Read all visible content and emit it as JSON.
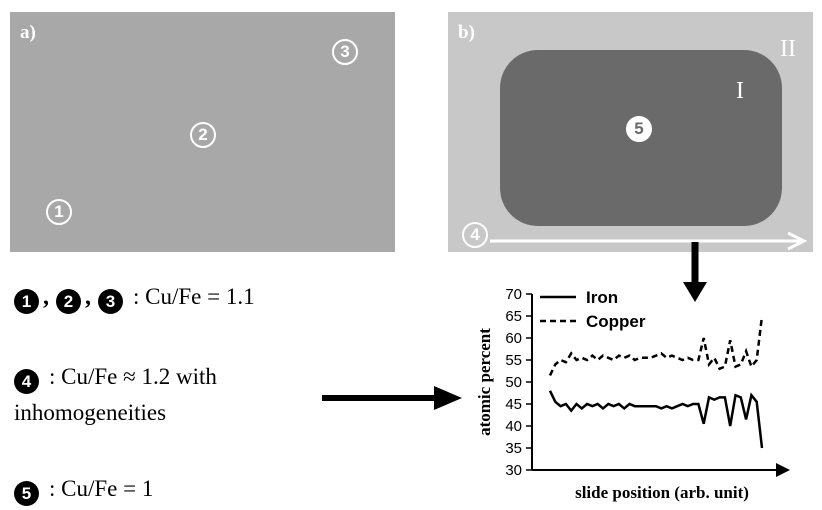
{
  "panel_a": {
    "label": "a)",
    "markers": [
      "1",
      "2",
      "3"
    ]
  },
  "panel_b": {
    "label": "b)",
    "region_inner": "I",
    "region_outer": "II",
    "marker_center": "5",
    "marker_line": "4"
  },
  "notes": {
    "line1_markers": [
      "1",
      "2",
      "3"
    ],
    "line1_text": ": Cu/Fe = 1.1",
    "line2_marker": "4",
    "line2_text": ": Cu/Fe ≈ 1.2 with",
    "line2_text_b": "inhomogeneities",
    "line3_marker": "5",
    "line3_text": ": Cu/Fe = 1"
  },
  "colors": {
    "panel_a": "#a8a8a8",
    "panel_b": "#c8c8c8",
    "region_I": "#6a6a6a"
  },
  "chart_data": {
    "type": "line",
    "ylabel": "atomic percent",
    "xlabel": "slide position (arb. unit)",
    "ylim": [
      30,
      70
    ],
    "yticks": [
      30,
      35,
      40,
      45,
      50,
      55,
      60,
      65,
      70
    ],
    "legend": "top-left",
    "x_unlabeled": true,
    "series": [
      {
        "name": "Iron",
        "style": "solid",
        "x": [
          0,
          1,
          2,
          3,
          4,
          5,
          6,
          7,
          8,
          9,
          10,
          11,
          12,
          13,
          14,
          15,
          16,
          17,
          18,
          19,
          20,
          21,
          22,
          23,
          24,
          25,
          26,
          27,
          28,
          29,
          30,
          31,
          32,
          33,
          34,
          35,
          36,
          37,
          38,
          39,
          40
        ],
        "values": [
          48,
          45.5,
          44.5,
          45,
          43.5,
          45,
          44,
          45,
          44.5,
          45,
          44,
          45,
          44.5,
          45,
          44,
          45,
          44.5,
          44.5,
          44.5,
          44.5,
          44.5,
          44,
          44.5,
          44,
          44.5,
          45,
          44.5,
          45,
          45,
          40.5,
          46.5,
          46,
          46.5,
          46.5,
          40,
          47,
          46.5,
          41.5,
          47,
          45.5,
          35
        ]
      },
      {
        "name": "Copper",
        "style": "dashed",
        "x": [
          0,
          1,
          2,
          3,
          4,
          5,
          6,
          7,
          8,
          9,
          10,
          11,
          12,
          13,
          14,
          15,
          16,
          17,
          18,
          19,
          20,
          21,
          22,
          23,
          24,
          25,
          26,
          27,
          28,
          29,
          30,
          31,
          32,
          33,
          34,
          35,
          36,
          37,
          38,
          39,
          40
        ],
        "values": [
          51.5,
          54,
          55,
          54.5,
          56.5,
          55,
          55.5,
          55,
          56,
          55,
          56,
          55.5,
          55,
          56,
          55.5,
          56,
          55,
          55.5,
          55.5,
          55.5,
          56,
          56.5,
          55.5,
          56,
          55.5,
          55,
          55.5,
          55,
          55,
          60,
          54,
          55.5,
          53,
          53.5,
          59.5,
          53.5,
          54,
          57,
          53.5,
          55,
          65
        ]
      }
    ]
  }
}
